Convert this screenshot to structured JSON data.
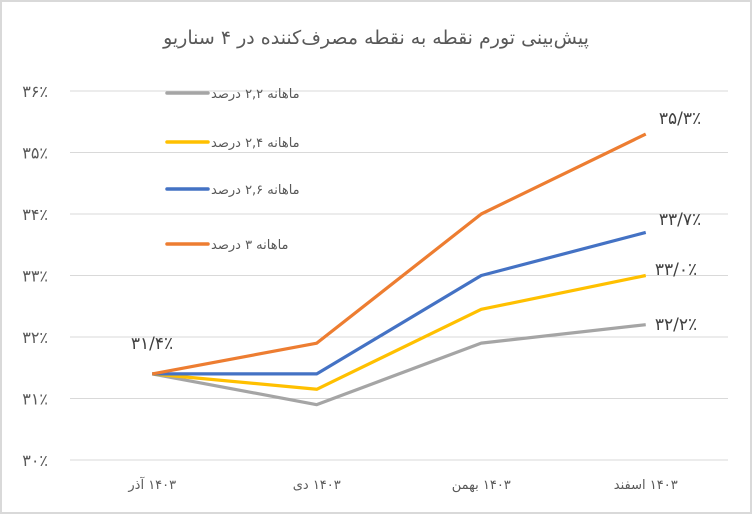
{
  "chart_data": {
    "type": "line",
    "title": "پیش‌بینی تورم نقطه به نقطه مصرف‌کننده در ۴ سناریو",
    "xlabel": "",
    "ylabel": "",
    "categories": [
      "۱۴۰۳ آذر",
      "۱۴۰۳ دی",
      "۱۴۰۳ بهمن",
      "۱۴۰۳ اسفند"
    ],
    "y_tick_labels": [
      "۳۰٪",
      "۳۱٪",
      "۳۲٪",
      "۳۳٪",
      "۳۴٪",
      "۳۵٪",
      "۳۶٪"
    ],
    "ylim": [
      30,
      36
    ],
    "grid": true,
    "legend_position": "top-left-inside",
    "series": [
      {
        "name": "ماهانه ۲,۲ درصد",
        "color": "#a5a5a5",
        "values": [
          31.4,
          30.9,
          31.9,
          32.2
        ]
      },
      {
        "name": "ماهانه ۲,۴ درصد",
        "color": "#ffc000",
        "values": [
          31.4,
          31.15,
          32.45,
          33.0
        ]
      },
      {
        "name": "ماهانه ۲,۶ درصد",
        "color": "#4472c4",
        "values": [
          31.4,
          31.4,
          33.0,
          33.7
        ]
      },
      {
        "name": "ماهانه ۳ درصد",
        "color": "#ed7d31",
        "values": [
          31.4,
          31.9,
          34.0,
          35.3
        ]
      }
    ],
    "annotations": [
      {
        "text": "۳۱/۴٪",
        "category": "۱۴۰۳ آذر",
        "value": 31.4
      },
      {
        "text": "۳۵/۳٪",
        "category": "۱۴۰۳ اسفند",
        "value": 35.3
      },
      {
        "text": "۳۳/۷٪",
        "category": "۱۴۰۳ اسفند",
        "value": 33.7
      },
      {
        "text": "۳۳/۰٪",
        "category": "۱۴۰۳ اسفند",
        "value": 33.0
      },
      {
        "text": "۳۲/۲٪",
        "category": "۱۴۰۳ اسفند",
        "value": 32.2
      }
    ]
  }
}
